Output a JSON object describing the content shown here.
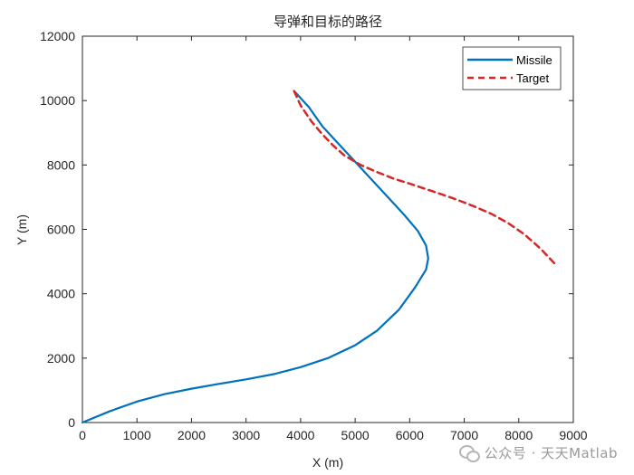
{
  "chart_data": {
    "type": "line",
    "title": "导弹和目标的路径",
    "xlabel": "X (m)",
    "ylabel": "Y (m)",
    "xlim": [
      0,
      9000
    ],
    "ylim": [
      0,
      12000
    ],
    "xticks": [
      "0",
      "1000",
      "2000",
      "3000",
      "4000",
      "5000",
      "6000",
      "7000",
      "8000",
      "9000"
    ],
    "yticks": [
      "0",
      "2000",
      "4000",
      "6000",
      "8000",
      "10000",
      "12000"
    ],
    "grid": false,
    "legend_position": "top-right",
    "series": [
      {
        "name": "Missile",
        "color": "#0072BD",
        "style": "solid",
        "x": [
          0,
          500,
          1000,
          1500,
          2000,
          2500,
          3000,
          3500,
          4000,
          4500,
          5000,
          5400,
          5800,
          6100,
          6300,
          6340,
          6300,
          6150,
          5900,
          5600,
          5300,
          5000,
          4700,
          4400,
          4150,
          3880
        ],
        "y": [
          0,
          350,
          650,
          880,
          1050,
          1200,
          1340,
          1500,
          1720,
          2000,
          2400,
          2850,
          3500,
          4200,
          4750,
          5100,
          5500,
          5950,
          6450,
          7000,
          7550,
          8100,
          8650,
          9200,
          9800,
          10300
        ]
      },
      {
        "name": "Target",
        "color": "#D62728",
        "style": "dashed",
        "x": [
          8650,
          8400,
          8100,
          7800,
          7500,
          7200,
          6900,
          6600,
          6300,
          6000,
          5700,
          5400,
          5100,
          4800,
          4600,
          4400,
          4200,
          4000,
          3880
        ],
        "y": [
          4950,
          5400,
          5850,
          6200,
          6480,
          6700,
          6900,
          7080,
          7250,
          7420,
          7580,
          7780,
          8000,
          8300,
          8600,
          8950,
          9350,
          9850,
          10300
        ]
      }
    ]
  },
  "watermark": {
    "text": "公众号 · 天天Matlab",
    "icon": "wechat-icon"
  }
}
